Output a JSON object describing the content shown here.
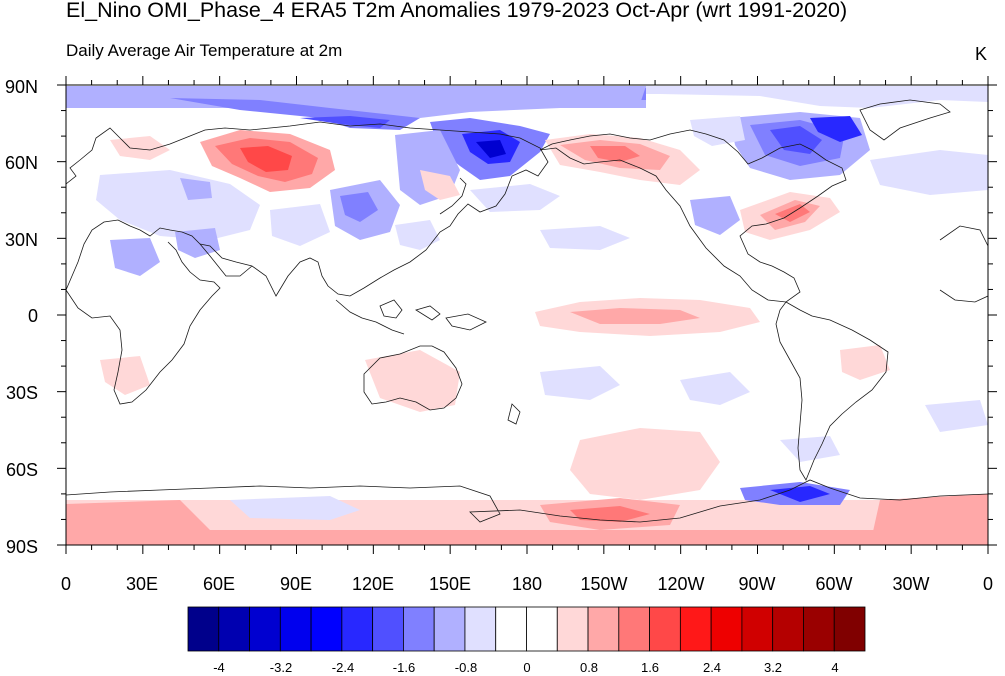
{
  "title": "El_Nino OMI_Phase_4 ERA5 T2m Anomalies 1979-2023 Oct-Apr (wrt 1991-2020)",
  "subtitle": "Daily Average Air Temperature at 2m",
  "units": "K",
  "latitude_labels": [
    "90N",
    "60N",
    "30N",
    "0",
    "30S",
    "60S",
    "90S"
  ],
  "longitude_labels": [
    "0",
    "30E",
    "60E",
    "90E",
    "120E",
    "150E",
    "180",
    "150W",
    "120W",
    "90W",
    "60W",
    "30W",
    "0"
  ],
  "colorbar": {
    "labels": [
      "-4",
      "-3.2",
      "-2.4",
      "-1.6",
      "-0.8",
      "0",
      "0.8",
      "1.6",
      "2.4",
      "3.2",
      "4"
    ],
    "colors": [
      "#00008b",
      "#0000b0",
      "#0000d0",
      "#0000ee",
      "#0000ff",
      "#2828ff",
      "#5050ff",
      "#8080ff",
      "#b0b0ff",
      "#e0e0ff",
      "#ffffff",
      "#ffffff",
      "#ffd8d8",
      "#ffa8a8",
      "#ff7878",
      "#ff4848",
      "#ff1818",
      "#ee0000",
      "#d00000",
      "#b40000",
      "#9a0000",
      "#800000"
    ]
  },
  "map_colors": {
    "ocean": "#ffffff",
    "coast": "#1a1a1a"
  }
}
